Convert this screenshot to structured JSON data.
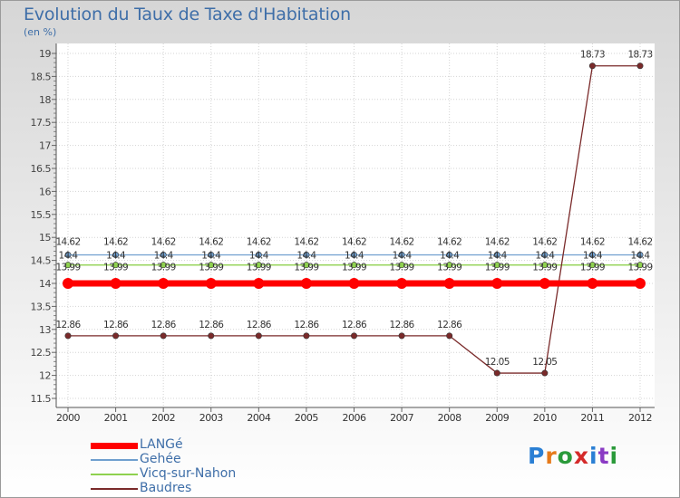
{
  "chart_data": {
    "type": "line",
    "title": "Evolution du Taux de Taxe d'Habitation",
    "subtitle": "(en %)",
    "x": [
      "2000",
      "2001",
      "2002",
      "2003",
      "2004",
      "2005",
      "2006",
      "2007",
      "2008",
      "2009",
      "2010",
      "2011",
      "2012"
    ],
    "ylim": [
      11.5,
      19
    ],
    "yticks": [
      "11.5",
      "12",
      "12.5",
      "13",
      "13.5",
      "14",
      "14.5",
      "15",
      "15.5",
      "16",
      "16.5",
      "17",
      "17.5",
      "18",
      "18.5",
      "19"
    ],
    "series": [
      {
        "name": "LANGé",
        "color": "#ff0000",
        "values": [
          14,
          14,
          14,
          14,
          14,
          14,
          14,
          14,
          14,
          14,
          14,
          14,
          14
        ],
        "labels": [
          "",
          "",
          "",
          "",
          "",
          "",
          "",
          "",
          "",
          "",
          "",
          "",
          ""
        ]
      },
      {
        "name": "Gehée",
        "color": "#6f9fcf",
        "values": [
          14.62,
          14.62,
          14.62,
          14.62,
          14.62,
          14.62,
          14.62,
          14.62,
          14.62,
          14.62,
          14.62,
          14.62,
          14.62
        ],
        "labels": [
          "14.62",
          "14.62",
          "14.62",
          "14.62",
          "14.62",
          "14.62",
          "14.62",
          "14.62",
          "14.62",
          "14.62",
          "14.62",
          "14.62",
          "14.62"
        ]
      },
      {
        "name": "Vicq-sur-Nahon",
        "color": "#8fd14f",
        "values": [
          14.4,
          14.4,
          14.4,
          14.4,
          14.4,
          14.4,
          14.4,
          14.4,
          14.4,
          14.4,
          14.4,
          14.4,
          14.4
        ],
        "labels": [
          "14.4",
          "14.4",
          "14.4",
          "14.4",
          "14.4",
          "14.4",
          "14.4",
          "14.4",
          "14.4",
          "14.4",
          "14.4",
          "14.4",
          "14.4"
        ]
      },
      {
        "name": "Baudres",
        "color": "#7a2a2a",
        "values": [
          12.86,
          12.86,
          12.86,
          12.86,
          12.86,
          12.86,
          12.86,
          12.86,
          12.86,
          12.05,
          12.05,
          18.73,
          18.73
        ],
        "labels": [
          "12.86",
          "12.86",
          "12.86",
          "12.86",
          "12.86",
          "12.86",
          "12.86",
          "12.86",
          "12.86",
          "12.05",
          "12.05",
          "18.73",
          "18.73"
        ]
      }
    ],
    "extra_labels": [
      "13.99",
      "13.99",
      "13.99",
      "13.99",
      "13.99",
      "13.99",
      "13.99",
      "13.99",
      "13.99",
      "13.99",
      "13.99",
      "13.99",
      "13.99"
    ],
    "grid": true
  },
  "legend": {
    "items": [
      {
        "label": "LANGé",
        "color": "#ff0000"
      },
      {
        "label": "Gehée",
        "color": "#6f9fcf"
      },
      {
        "label": "Vicq-sur-Nahon",
        "color": "#8fd14f"
      },
      {
        "label": "Baudres",
        "color": "#7a2a2a"
      }
    ]
  },
  "logo": {
    "text": "Proxiti",
    "letters": [
      "P",
      "r",
      "o",
      "x",
      "i",
      "t",
      "i"
    ],
    "colors": [
      "#2a7fd4",
      "#e67a1a",
      "#2a9a3a",
      "#d42a2a",
      "#2a7fd4",
      "#8a3ac4",
      "#2a9a3a"
    ]
  }
}
